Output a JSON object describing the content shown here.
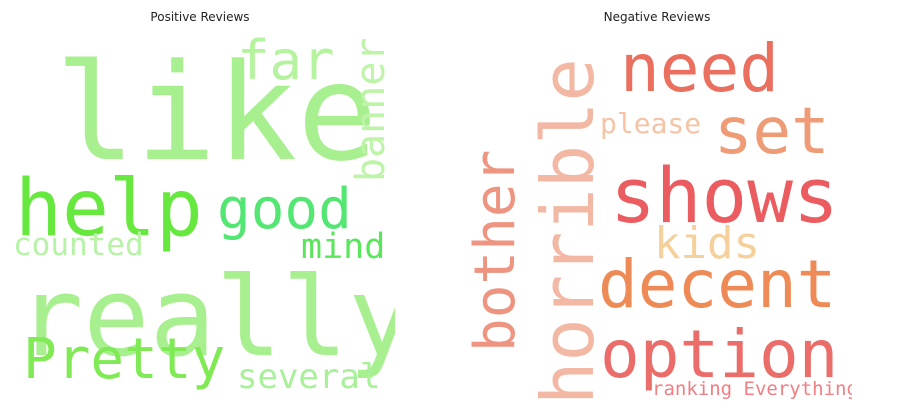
{
  "panels": [
    {
      "title": "Positive Reviews",
      "words": [
        {
          "text": "like",
          "color": "#a8f08f"
        },
        {
          "text": "far",
          "color": "#b6f39f"
        },
        {
          "text": "banner",
          "color": "#bdf4a8"
        },
        {
          "text": "help",
          "color": "#67e83f"
        },
        {
          "text": "good",
          "color": "#53e672"
        },
        {
          "text": "counted",
          "color": "#b7f3a6"
        },
        {
          "text": "mind",
          "color": "#5ae65b"
        },
        {
          "text": "really",
          "color": "#a8f08f"
        },
        {
          "text": "Pretty",
          "color": "#7fea54"
        },
        {
          "text": "several",
          "color": "#a9f09a"
        }
      ]
    },
    {
      "title": "Negative Reviews",
      "words": [
        {
          "text": "need",
          "color": "#ea6f5e"
        },
        {
          "text": "please",
          "color": "#f5c3a6"
        },
        {
          "text": "set",
          "color": "#ee9b76"
        },
        {
          "text": "horrible",
          "color": "#f2b8a3"
        },
        {
          "text": "bother",
          "color": "#ee9581"
        },
        {
          "text": "shows",
          "color": "#ea5c5f"
        },
        {
          "text": "kids",
          "color": "#f5d09a"
        },
        {
          "text": "decent",
          "color": "#ee8a55"
        },
        {
          "text": "option",
          "color": "#ea6d69"
        },
        {
          "text": "ranking Everything",
          "color": "#f07e83"
        }
      ]
    }
  ]
}
